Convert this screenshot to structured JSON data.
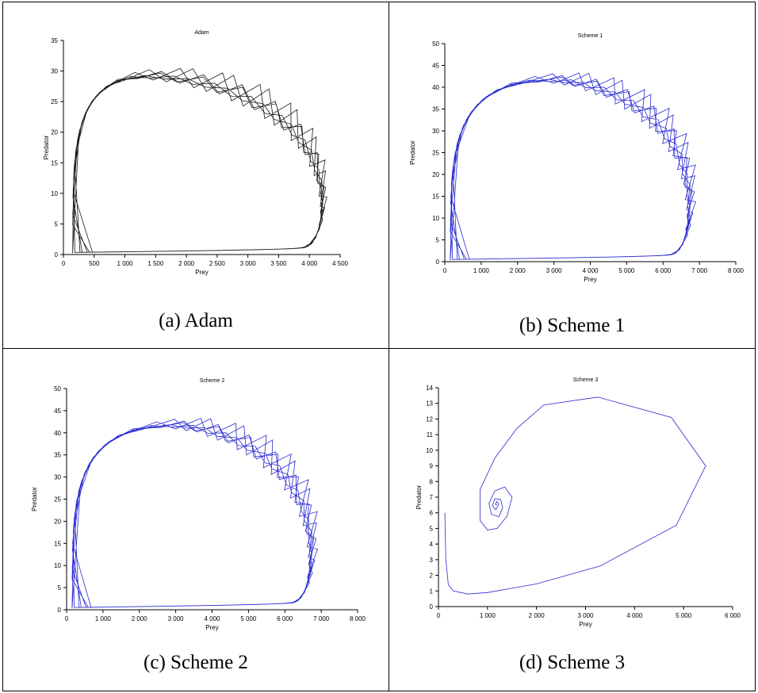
{
  "colors": {
    "black_series": "#1a1a1a",
    "blue_series": "#2a2ad0"
  },
  "chart_data": [
    {
      "type": "line",
      "panel_caption": "(a)  Adam",
      "title": "Adam",
      "xlabel": "Prey",
      "ylabel": "Predator",
      "xlim": [
        0,
        4500
      ],
      "ylim": [
        0,
        35
      ],
      "xticks": [
        0,
        500,
        1000,
        1500,
        2000,
        2500,
        3000,
        3500,
        4000,
        4500
      ],
      "xtick_labels": [
        "0",
        "500",
        "1 000",
        "1 500",
        "2 000",
        "2 500",
        "3 000",
        "3 500",
        "4 000",
        "4 500"
      ],
      "yticks": [
        0,
        5,
        10,
        15,
        20,
        25,
        30,
        35
      ],
      "ytick_labels": [
        "0",
        "5",
        "10",
        "15",
        "20",
        "25",
        "30",
        "35"
      ],
      "series_color": "#1a1a1a",
      "cycle": {
        "center": [
          1500,
          8
        ],
        "min_x": 150,
        "max_x": 4200,
        "min_y": 0.2,
        "max_y": 29,
        "peak_x": 1300
      },
      "overshoot": {
        "loops": 6,
        "x_amp": 150,
        "y_amp": 3.5
      }
    },
    {
      "type": "line",
      "panel_caption": "(b)  Scheme 1",
      "title": "Scheme 1",
      "xlabel": "Prey",
      "ylabel": "Predator",
      "xlim": [
        0,
        8000
      ],
      "ylim": [
        0,
        50
      ],
      "xticks": [
        0,
        1000,
        2000,
        3000,
        4000,
        5000,
        6000,
        7000,
        8000
      ],
      "xtick_labels": [
        "0",
        "1 000",
        "2 000",
        "3 000",
        "4 000",
        "5 000",
        "6 000",
        "7 000",
        "8 000"
      ],
      "yticks": [
        0,
        5,
        10,
        15,
        20,
        25,
        30,
        35,
        40,
        45,
        50
      ],
      "ytick_labels": [
        "0",
        "5",
        "10",
        "15",
        "20",
        "25",
        "30",
        "35",
        "40",
        "45",
        "50"
      ],
      "series_color": "#2a2ad0",
      "cycle": {
        "center": [
          2600,
          12
        ],
        "min_x": 150,
        "max_x": 6700,
        "min_y": 0.3,
        "max_y": 41.5,
        "peak_x": 2800
      },
      "overshoot": {
        "loops": 6,
        "x_amp": 350,
        "y_amp": 4.5
      }
    },
    {
      "type": "line",
      "panel_caption": "(c)  Scheme 2",
      "title": "Scheme 2",
      "xlabel": "Prey",
      "ylabel": "Predator",
      "xlim": [
        0,
        8000
      ],
      "ylim": [
        0,
        50
      ],
      "xticks": [
        0,
        1000,
        2000,
        3000,
        4000,
        5000,
        6000,
        7000,
        8000
      ],
      "xtick_labels": [
        "0",
        "1 000",
        "2 000",
        "3 000",
        "4 000",
        "5 000",
        "6 000",
        "7 000",
        "8 000"
      ],
      "yticks": [
        0,
        5,
        10,
        15,
        20,
        25,
        30,
        35,
        40,
        45,
        50
      ],
      "ytick_labels": [
        "0",
        "5",
        "10",
        "15",
        "20",
        "25",
        "30",
        "35",
        "40",
        "45",
        "50"
      ],
      "series_color": "#2a2ad0",
      "cycle": {
        "center": [
          2600,
          12
        ],
        "min_x": 150,
        "max_x": 6700,
        "min_y": 0.3,
        "max_y": 41.5,
        "peak_x": 2800
      },
      "overshoot": {
        "loops": 6,
        "x_amp": 350,
        "y_amp": 4.5
      }
    },
    {
      "type": "line",
      "panel_caption": "(d)  Scheme 3",
      "title": "Scheme 3",
      "xlabel": "Prey",
      "ylabel": "Predator",
      "xlim": [
        0,
        6000
      ],
      "ylim": [
        0,
        14
      ],
      "xticks": [
        0,
        1000,
        2000,
        3000,
        4000,
        5000,
        6000
      ],
      "xtick_labels": [
        "0",
        "1 000",
        "2 000",
        "3 000",
        "4 000",
        "5 000",
        "6 000"
      ],
      "yticks": [
        0,
        1,
        2,
        3,
        4,
        5,
        6,
        7,
        8,
        9,
        10,
        11,
        12,
        13,
        14
      ],
      "ytick_labels": [
        "0",
        "1",
        "2",
        "3",
        "4",
        "5",
        "6",
        "7",
        "8",
        "9",
        "10",
        "11",
        "12",
        "13",
        "14"
      ],
      "series_color": "#2a2ad0",
      "points": [
        [
          130,
          6.0
        ],
        [
          150,
          3.0
        ],
        [
          200,
          1.4
        ],
        [
          300,
          1.0
        ],
        [
          600,
          0.8
        ],
        [
          1000,
          0.9
        ],
        [
          2000,
          1.45
        ],
        [
          3300,
          2.6
        ],
        [
          4850,
          5.2
        ],
        [
          5450,
          9.0
        ],
        [
          4750,
          12.1
        ],
        [
          3250,
          13.4
        ],
        [
          2150,
          12.9
        ],
        [
          1600,
          11.4
        ],
        [
          1150,
          9.5
        ],
        [
          850,
          7.5
        ],
        [
          850,
          5.5
        ],
        [
          1000,
          4.9
        ],
        [
          1200,
          5.0
        ],
        [
          1400,
          5.8
        ],
        [
          1500,
          7.0
        ],
        [
          1350,
          7.65
        ],
        [
          1150,
          7.4
        ],
        [
          1030,
          6.6
        ],
        [
          1080,
          5.9
        ],
        [
          1230,
          5.75
        ],
        [
          1310,
          6.3
        ],
        [
          1270,
          6.85
        ],
        [
          1150,
          6.9
        ],
        [
          1100,
          6.45
        ],
        [
          1170,
          6.2
        ],
        [
          1230,
          6.55
        ],
        [
          1190,
          6.72
        ],
        [
          1160,
          6.55
        ],
        [
          1195,
          6.5
        ]
      ]
    }
  ]
}
